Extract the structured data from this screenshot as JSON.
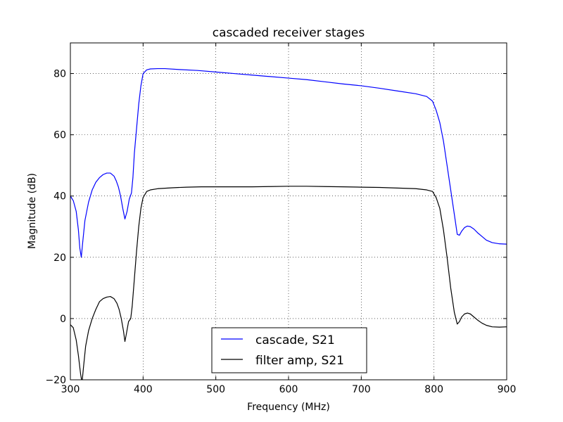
{
  "chart_data": {
    "type": "line",
    "title": "cascaded receiver stages",
    "xlabel": "Frequency (MHz)",
    "ylabel": "Magnitude (dB)",
    "xlim": [
      300,
      900
    ],
    "ylim": [
      -20,
      90
    ],
    "xticks": [
      300,
      400,
      500,
      600,
      700,
      800,
      900
    ],
    "yticks": [
      -20,
      0,
      20,
      40,
      60,
      80
    ],
    "grid": true,
    "legend_position": "lower-center",
    "series": [
      {
        "name": "cascade, S21",
        "color": "#0000ff",
        "points": [
          [
            300,
            40
          ],
          [
            304,
            38.5
          ],
          [
            308,
            35
          ],
          [
            311,
            29
          ],
          [
            313,
            23
          ],
          [
            315,
            20
          ],
          [
            317,
            25
          ],
          [
            320,
            32
          ],
          [
            325,
            38
          ],
          [
            330,
            42
          ],
          [
            335,
            44.5
          ],
          [
            340,
            46
          ],
          [
            345,
            47
          ],
          [
            350,
            47.5
          ],
          [
            355,
            47.5
          ],
          [
            360,
            46.5
          ],
          [
            363,
            45
          ],
          [
            366,
            43
          ],
          [
            369,
            40
          ],
          [
            372,
            36
          ],
          [
            375,
            32.5
          ],
          [
            378,
            35
          ],
          [
            381,
            39
          ],
          [
            384,
            41
          ],
          [
            386,
            46
          ],
          [
            388,
            54
          ],
          [
            391,
            62
          ],
          [
            394,
            70
          ],
          [
            397,
            76
          ],
          [
            400,
            80
          ],
          [
            405,
            81.2
          ],
          [
            410,
            81.5
          ],
          [
            420,
            81.6
          ],
          [
            430,
            81.6
          ],
          [
            450,
            81.3
          ],
          [
            475,
            81
          ],
          [
            500,
            80.5
          ],
          [
            525,
            80
          ],
          [
            550,
            79.5
          ],
          [
            575,
            79
          ],
          [
            600,
            78.5
          ],
          [
            625,
            78
          ],
          [
            650,
            77.3
          ],
          [
            675,
            76.6
          ],
          [
            700,
            76
          ],
          [
            725,
            75.2
          ],
          [
            750,
            74.3
          ],
          [
            775,
            73.4
          ],
          [
            790,
            72.5
          ],
          [
            798,
            71
          ],
          [
            803,
            68
          ],
          [
            808,
            64
          ],
          [
            813,
            58
          ],
          [
            818,
            50
          ],
          [
            823,
            42
          ],
          [
            828,
            34
          ],
          [
            832,
            27.5
          ],
          [
            835,
            27.2
          ],
          [
            838,
            28.5
          ],
          [
            842,
            29.7
          ],
          [
            846,
            30.2
          ],
          [
            850,
            30
          ],
          [
            855,
            29.2
          ],
          [
            860,
            28
          ],
          [
            866,
            26.8
          ],
          [
            872,
            25.6
          ],
          [
            880,
            24.8
          ],
          [
            890,
            24.4
          ],
          [
            900,
            24.3
          ]
        ]
      },
      {
        "name": "filter amp, S21",
        "color": "#000000",
        "points": [
          [
            300,
            -2
          ],
          [
            304,
            -3
          ],
          [
            308,
            -7
          ],
          [
            311,
            -12
          ],
          [
            314,
            -18
          ],
          [
            316,
            -21
          ],
          [
            318,
            -16
          ],
          [
            321,
            -9
          ],
          [
            325,
            -4
          ],
          [
            330,
            0
          ],
          [
            335,
            3
          ],
          [
            340,
            5.5
          ],
          [
            345,
            6.5
          ],
          [
            350,
            7
          ],
          [
            355,
            7.2
          ],
          [
            360,
            6.5
          ],
          [
            364,
            5
          ],
          [
            367,
            3
          ],
          [
            370,
            0
          ],
          [
            373,
            -4
          ],
          [
            375,
            -7.5
          ],
          [
            377,
            -5
          ],
          [
            380,
            -1
          ],
          [
            383,
            0
          ],
          [
            385,
            4
          ],
          [
            388,
            13
          ],
          [
            391,
            22
          ],
          [
            394,
            30
          ],
          [
            397,
            36
          ],
          [
            400,
            39.5
          ],
          [
            405,
            41.5
          ],
          [
            410,
            42
          ],
          [
            420,
            42.4
          ],
          [
            440,
            42.7
          ],
          [
            460,
            42.9
          ],
          [
            480,
            43
          ],
          [
            500,
            43
          ],
          [
            525,
            43
          ],
          [
            550,
            43
          ],
          [
            575,
            43.1
          ],
          [
            600,
            43.2
          ],
          [
            625,
            43.2
          ],
          [
            650,
            43.1
          ],
          [
            675,
            43
          ],
          [
            700,
            42.9
          ],
          [
            725,
            42.8
          ],
          [
            750,
            42.6
          ],
          [
            775,
            42.4
          ],
          [
            790,
            42
          ],
          [
            798,
            41.5
          ],
          [
            803,
            39.5
          ],
          [
            808,
            36
          ],
          [
            813,
            29
          ],
          [
            818,
            20
          ],
          [
            823,
            10
          ],
          [
            828,
            2
          ],
          [
            832,
            -1.8
          ],
          [
            835,
            -1
          ],
          [
            838,
            0.5
          ],
          [
            842,
            1.5
          ],
          [
            846,
            1.8
          ],
          [
            850,
            1.5
          ],
          [
            855,
            0.5
          ],
          [
            860,
            -0.5
          ],
          [
            866,
            -1.5
          ],
          [
            872,
            -2.2
          ],
          [
            880,
            -2.7
          ],
          [
            890,
            -2.8
          ],
          [
            900,
            -2.7
          ]
        ]
      }
    ]
  }
}
